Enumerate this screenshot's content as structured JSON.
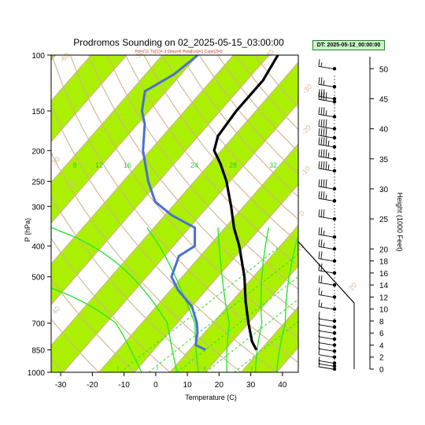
{
  "chart_data": {
    "type": "skew-t sounding",
    "title": "Prodromos Sounding on 02_2025-05-15_03:00:00",
    "subtitle": "Pcl=711 Tlc[C]=-3 Show=6 Pwat[cm]=1 Cape[J]=0",
    "xlabel": "Temperature (C)",
    "ylabel": "P (hPa)",
    "y2label": "Height (1000 Feet)",
    "dt_label": "DT: 2025-05-12_00:00:00",
    "xlim": [
      -33,
      45
    ],
    "ylim": [
      1000,
      100
    ],
    "x_ticks": [
      "-30",
      "-20",
      "-10",
      "0",
      "10",
      "20",
      "30",
      "40"
    ],
    "y_ticks": [
      "100",
      "150",
      "200",
      "250",
      "300",
      "400",
      "500",
      "700",
      "850",
      "1000"
    ],
    "height_ticks": [
      "50",
      "45",
      "40",
      "35",
      "30",
      "25",
      "20",
      "18",
      "16",
      "14",
      "12",
      "10",
      "8",
      "6",
      "4",
      "2",
      "0"
    ],
    "isotherm_labels": [
      "-60",
      "-50",
      "-40",
      "-30",
      "-20",
      "-10",
      "0",
      "10",
      "20",
      "30",
      "40",
      "50"
    ],
    "mixing_ratio_labels": [
      "8",
      "12",
      "16",
      "24",
      "28",
      "32"
    ],
    "mixing_ratio_labels_lower": [
      "1",
      "2",
      "3",
      "5"
    ],
    "temperature": [
      {
        "p": 850,
        "t": 18.8
      },
      {
        "p": 800,
        "t": 15.5
      },
      {
        "p": 700,
        "t": 10
      },
      {
        "p": 600,
        "t": 4
      },
      {
        "p": 500,
        "t": -2.5
      },
      {
        "p": 400,
        "t": -11.5
      },
      {
        "p": 350,
        "t": -17.5
      },
      {
        "p": 300,
        "t": -23.5
      },
      {
        "p": 250,
        "t": -31
      },
      {
        "p": 220,
        "t": -37
      },
      {
        "p": 200,
        "t": -42
      },
      {
        "p": 180,
        "t": -44.5
      },
      {
        "p": 150,
        "t": -45.5
      },
      {
        "p": 120,
        "t": -45.5
      },
      {
        "p": 100,
        "t": -47.5
      }
    ],
    "dewpoint": [
      {
        "p": 850,
        "t": 4.5
      },
      {
        "p": 820,
        "t": 0.5
      },
      {
        "p": 750,
        "t": -2
      },
      {
        "p": 700,
        "t": -4.5
      },
      {
        "p": 620,
        "t": -10
      },
      {
        "p": 550,
        "t": -18
      },
      {
        "p": 500,
        "t": -23
      },
      {
        "p": 430,
        "t": -26
      },
      {
        "p": 400,
        "t": -24
      },
      {
        "p": 350,
        "t": -28.5
      },
      {
        "p": 320,
        "t": -38
      },
      {
        "p": 290,
        "t": -46
      },
      {
        "p": 250,
        "t": -53
      },
      {
        "p": 200,
        "t": -62
      },
      {
        "p": 165,
        "t": -68
      },
      {
        "p": 150,
        "t": -72
      },
      {
        "p": 130,
        "t": -76
      },
      {
        "p": 115,
        "t": -72
      },
      {
        "p": 100,
        "t": -70
      }
    ],
    "wind_levels": [
      {
        "h": 0,
        "spd": 5
      },
      {
        "h": 0.5,
        "spd": 5
      },
      {
        "h": 1,
        "spd": 5
      },
      {
        "h": 2,
        "spd": 10
      },
      {
        "h": 3,
        "spd": 10
      },
      {
        "h": 4,
        "spd": 10
      },
      {
        "h": 5,
        "spd": 10
      },
      {
        "h": 6,
        "spd": 10
      },
      {
        "h": 7,
        "spd": 10
      },
      {
        "h": 8,
        "spd": 10
      },
      {
        "h": 10,
        "spd": 15
      },
      {
        "h": 12,
        "spd": 15
      },
      {
        "h": 14,
        "spd": 20
      },
      {
        "h": 16,
        "spd": 20
      },
      {
        "h": 18,
        "spd": 20
      },
      {
        "h": 20,
        "spd": 25
      },
      {
        "h": 22,
        "spd": 25
      },
      {
        "h": 25,
        "spd": 30
      },
      {
        "h": 28,
        "spd": 35
      },
      {
        "h": 30,
        "spd": 40
      },
      {
        "h": 33,
        "spd": 45
      },
      {
        "h": 35,
        "spd": 45
      },
      {
        "h": 37,
        "spd": 45
      },
      {
        "h": 38.5,
        "spd": 40
      },
      {
        "h": 40,
        "spd": 40
      },
      {
        "h": 42,
        "spd": 35
      },
      {
        "h": 44.5,
        "spd": 40
      },
      {
        "h": 45,
        "spd": 30
      },
      {
        "h": 47,
        "spd": 25
      },
      {
        "h": 50,
        "spd": 15
      }
    ],
    "colors": {
      "band": "#aaf000",
      "isotherm": "#d2b48c",
      "mixing_ratio": "#2ee62e",
      "temperature": "#000000",
      "dewpoint": "#4a6fd4"
    },
    "grid": true
  }
}
